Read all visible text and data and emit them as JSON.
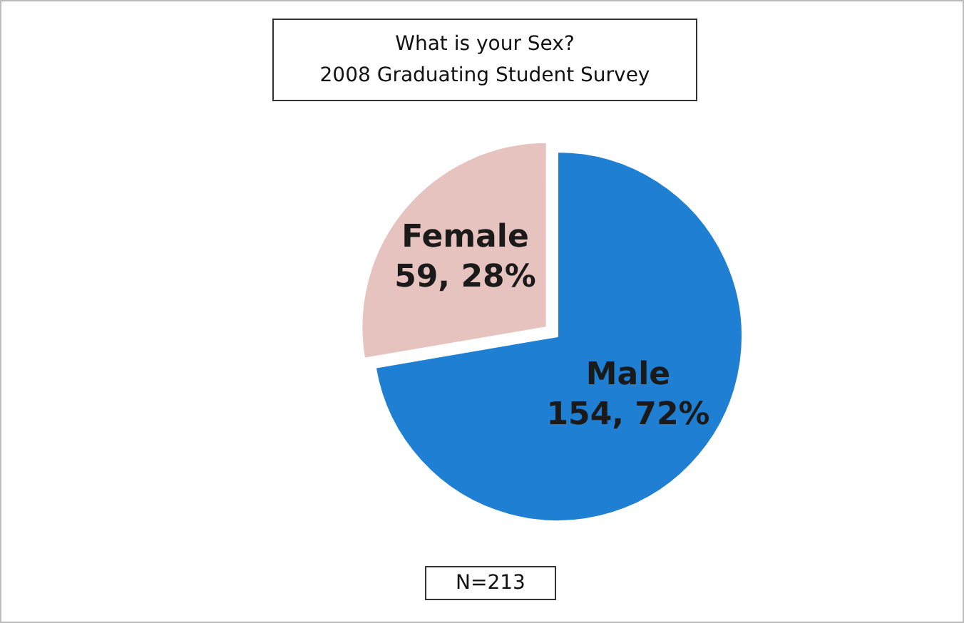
{
  "chart_data": {
    "type": "pie",
    "title": "What is your Sex?\n2008 Graduating Student Survey",
    "categories": [
      "Male",
      "Female"
    ],
    "values": [
      154,
      59
    ],
    "value_labels": [
      "154, 72%",
      "59, 28%"
    ],
    "colors": [
      "#1f7fd2",
      "#e6c3bf"
    ],
    "annotations": [
      "N=213"
    ],
    "legend": false
  }
}
